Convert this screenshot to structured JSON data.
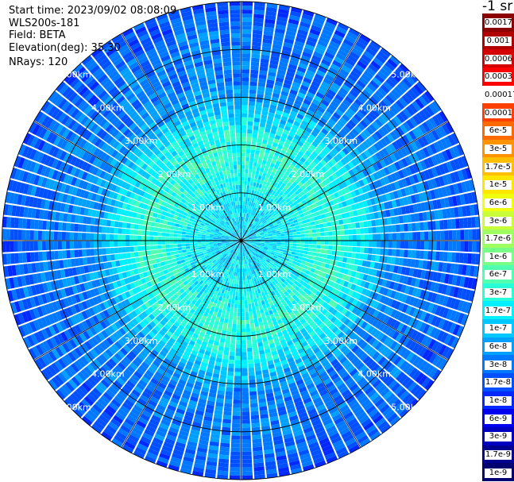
{
  "header": {
    "start_time": "Start time: 2023/09/02 08:08:09",
    "instrument": "WLS200s-181",
    "field": "Field: BETA",
    "elevation": "Elevation(deg): 35.30",
    "nrays": "NRays: 120"
  },
  "chart_data": {
    "type": "heatmap",
    "projection": "polar (PPI scan)",
    "title": "",
    "field": "BETA",
    "n_rays": 120,
    "elevation_deg": 35.3,
    "range_rings_km": [
      1,
      2,
      3,
      4,
      5
    ],
    "range_ring_labels": [
      "1.00km",
      "2.00km",
      "3.00km",
      "4.00km",
      "5.00km"
    ],
    "max_range_km": 5.0,
    "spokes_deg": [
      0,
      30,
      60,
      90,
      120,
      150,
      180,
      210,
      240,
      270,
      300,
      330
    ],
    "radial_profile": [
      {
        "range_km": 0.0,
        "value": "1e-7"
      },
      {
        "range_km": 1.0,
        "value": "1.7e-7"
      },
      {
        "range_km": 1.7,
        "value": "3e-7"
      },
      {
        "range_km": 2.0,
        "value": "3e-7"
      },
      {
        "range_km": 2.5,
        "value": "1.7e-7"
      },
      {
        "range_km": 3.0,
        "value": "6e-8"
      },
      {
        "range_km": 3.5,
        "value": "3e-8"
      },
      {
        "range_km": 4.0,
        "value": "3e-8"
      },
      {
        "range_km": 5.0,
        "value": "1.7e-8"
      }
    ],
    "colorbar": {
      "unit": "-1 sr",
      "bins": [
        {
          "label": "0.0017",
          "color": "#8b0000"
        },
        {
          "label": "0.001",
          "color": "#b00000"
        },
        {
          "label": "0.0006",
          "color": "#d40000"
        },
        {
          "label": "0.0003",
          "color": "#ff0000"
        },
        {
          "label": "0.00017",
          "color": "#ffffff"
        },
        {
          "label": "0.0001",
          "color": "#ff4000"
        },
        {
          "label": "6e-5",
          "color": "#ff6a00"
        },
        {
          "label": "3e-5",
          "color": "#ff9400"
        },
        {
          "label": "1.7e-5",
          "color": "#ffbf00"
        },
        {
          "label": "1e-5",
          "color": "#ffe600"
        },
        {
          "label": "6e-6",
          "color": "#f0ff10"
        },
        {
          "label": "3e-6",
          "color": "#c8ff38"
        },
        {
          "label": "1.7e-6",
          "color": "#a0ff60"
        },
        {
          "label": "1e-6",
          "color": "#78ff88"
        },
        {
          "label": "6e-7",
          "color": "#50ffb0"
        },
        {
          "label": "3e-7",
          "color": "#28ffd8"
        },
        {
          "label": "1.7e-7",
          "color": "#00f0ff"
        },
        {
          "label": "1e-7",
          "color": "#00c8ff"
        },
        {
          "label": "6e-8",
          "color": "#00a0ff"
        },
        {
          "label": "3e-8",
          "color": "#0078ff"
        },
        {
          "label": "1.7e-8",
          "color": "#0050ff"
        },
        {
          "label": "1e-8",
          "color": "#0028ff"
        },
        {
          "label": "6e-9",
          "color": "#0000f0"
        },
        {
          "label": "3e-9",
          "color": "#0000c0"
        },
        {
          "label": "1.7e-9",
          "color": "#000090"
        },
        {
          "label": "1e-9",
          "color": "#000070"
        }
      ]
    }
  }
}
